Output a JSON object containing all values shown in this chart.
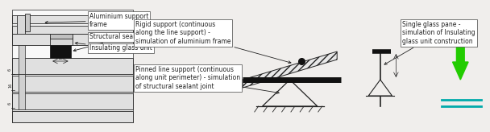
{
  "bg_color": "#f0eeec",
  "box_color": "#ffffff",
  "box_edge": "#444444",
  "draw_color": "#222222",
  "green_color": "#22cc00",
  "teal_color": "#00aaaa",
  "text_fontsize": 5.5,
  "labels": {
    "alum_frame": "Aluminium support\nframe",
    "struct_sealant": "Structural sealant joint",
    "insulating_glass": "Insulating glass unit",
    "rigid_support": "Rigid support (continuous\nalong the line support) -\nsimulation of aluminium frame",
    "pinned_support": "Pinned line support (continuous\nalong unit perimeter) - simulation\nof structural sealant joint",
    "single_glass": "Single glass pane -\nsimulation of Insulating\nglass unit construction"
  },
  "dim_18": "18"
}
